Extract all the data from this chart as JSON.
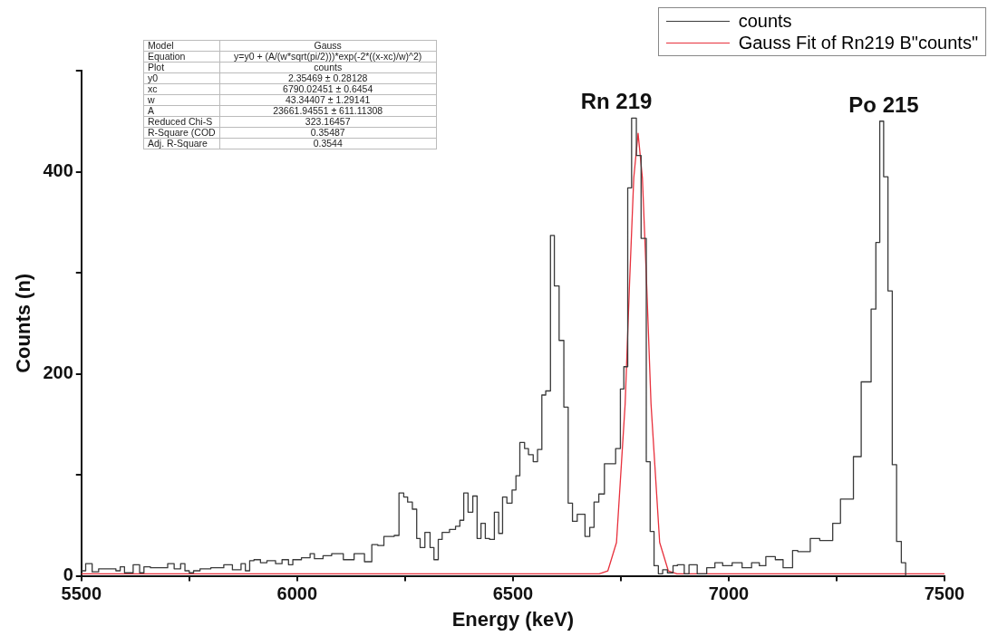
{
  "chart_data": {
    "type": "line",
    "xlabel": "Energy (keV)",
    "ylabel": "Counts (n)",
    "xlim": [
      5500,
      7500
    ],
    "xticks": [
      5500,
      {
        "value": 5750,
        "label": null
      },
      6000,
      {
        "value": 6250,
        "label": null
      },
      6500,
      {
        "value": 6750,
        "label": null
      },
      7000,
      {
        "value": 7250,
        "label": null
      },
      7500
    ],
    "ylim": [
      0,
      500
    ],
    "yticks": [
      0,
      {
        "value": 100,
        "label": null
      },
      200,
      {
        "value": 300,
        "label": null
      },
      400,
      {
        "value": 500,
        "label": null
      }
    ],
    "grid": false,
    "legend": "top right",
    "marker": "none",
    "line_style": "solid",
    "series": [
      {
        "name": "counts",
        "type": "step",
        "color": "#3a3a3a",
        "x": [
          5500,
          5510,
          5525,
          5540,
          5580,
          5590,
          5600,
          5620,
          5635,
          5645,
          5660,
          5700,
          5715,
          5730,
          5740,
          5750,
          5760,
          5775,
          5800,
          5830,
          5850,
          5870,
          5880,
          5890,
          5900,
          5915,
          5930,
          5950,
          5965,
          5980,
          5990,
          6010,
          6030,
          6040,
          6060,
          6080,
          6107,
          6132,
          6156,
          6173,
          6187,
          6201,
          6225,
          6236,
          6247,
          6256,
          6267,
          6277,
          6285,
          6296,
          6308,
          6317,
          6327,
          6336,
          6353,
          6367,
          6377,
          6386,
          6396,
          6407,
          6417,
          6426,
          6436,
          6446,
          6457,
          6467,
          6476,
          6486,
          6498,
          6507,
          6516,
          6527,
          6536,
          6547,
          6557,
          6567,
          6576,
          6587,
          6596,
          6607,
          6618,
          6628,
          6638,
          6649,
          6667,
          6678,
          6688,
          6699,
          6712,
          6738,
          6749,
          6757,
          6766,
          6775,
          6786,
          6797,
          6809,
          6818,
          6827,
          6837,
          6847,
          6858,
          6871,
          6881,
          6897,
          6908,
          6927,
          6949,
          6968,
          6986,
          7008,
          7031,
          7053,
          7071,
          7086,
          7108,
          7126,
          7148,
          7160,
          7189,
          7211,
          7241,
          7259,
          7289,
          7307,
          7330,
          7341,
          7350,
          7359,
          7369,
          7379,
          7389,
          7400,
          7410,
          7420
        ],
        "values": [
          8,
          5,
          12,
          4,
          7,
          5,
          9,
          3,
          11,
          3,
          9,
          8,
          12,
          7,
          12,
          5,
          3,
          5,
          7,
          8,
          11,
          6,
          12,
          5,
          15,
          16,
          13,
          15,
          12,
          16,
          11,
          16,
          18,
          22,
          17,
          20,
          22,
          16,
          22,
          14,
          31,
          30,
          39,
          40,
          82,
          78,
          73,
          66,
          37,
          28,
          43,
          28,
          16,
          36,
          43,
          46,
          49,
          55,
          82,
          63,
          79,
          37,
          52,
          37,
          36,
          63,
          42,
          78,
          72,
          85,
          99,
          132,
          126,
          120,
          113,
          125,
          179,
          183,
          337,
          287,
          233,
          167,
          72,
          54,
          61,
          39,
          48,
          73,
          81,
          111,
          126,
          185,
          207,
          384,
          453,
          416,
          334,
          113,
          44,
          10,
          2,
          6,
          3,
          10,
          11,
          2,
          11,
          2,
          8,
          13,
          10,
          13,
          8,
          13,
          10,
          19,
          16,
          8,
          25,
          24,
          37,
          35,
          52,
          76,
          118,
          192,
          264,
          330,
          450,
          395,
          282,
          110,
          34,
          13,
          0
        ]
      },
      {
        "name": "Gauss Fit of Rn219 B\"counts\"",
        "type": "line",
        "color": "#e8303c",
        "x": [
          5500,
          6000,
          6500,
          6700,
          6720,
          6740,
          6760,
          6770,
          6780,
          6790,
          6800,
          6810,
          6820,
          6840,
          6860,
          6880,
          6900,
          7000,
          7500
        ],
        "values": [
          2,
          2,
          2,
          2,
          5,
          33,
          170,
          287,
          394,
          438,
          394,
          287,
          170,
          33,
          5,
          2,
          2,
          2,
          2
        ]
      }
    ],
    "annotations": [
      "Rn 219",
      "Po 215",
      "Model",
      "Gauss",
      "Equation",
      "y=y0 + (A/(w*sqrt(pi/2)))*exp(-2*((x-xc)/w)^2)",
      "Plot",
      "counts",
      "y0",
      "2.35469 ± 0.28128",
      "xc",
      "6790.02451 ± 0.6454",
      "w",
      "43.34407 ± 1.29141",
      "A",
      "23661.94551 ± 611.11308",
      "Reduced Chi-S",
      "323.16457",
      "R-Square (COD",
      "0.35487",
      "Adj. R-Square",
      "0.3544"
    ]
  }
}
